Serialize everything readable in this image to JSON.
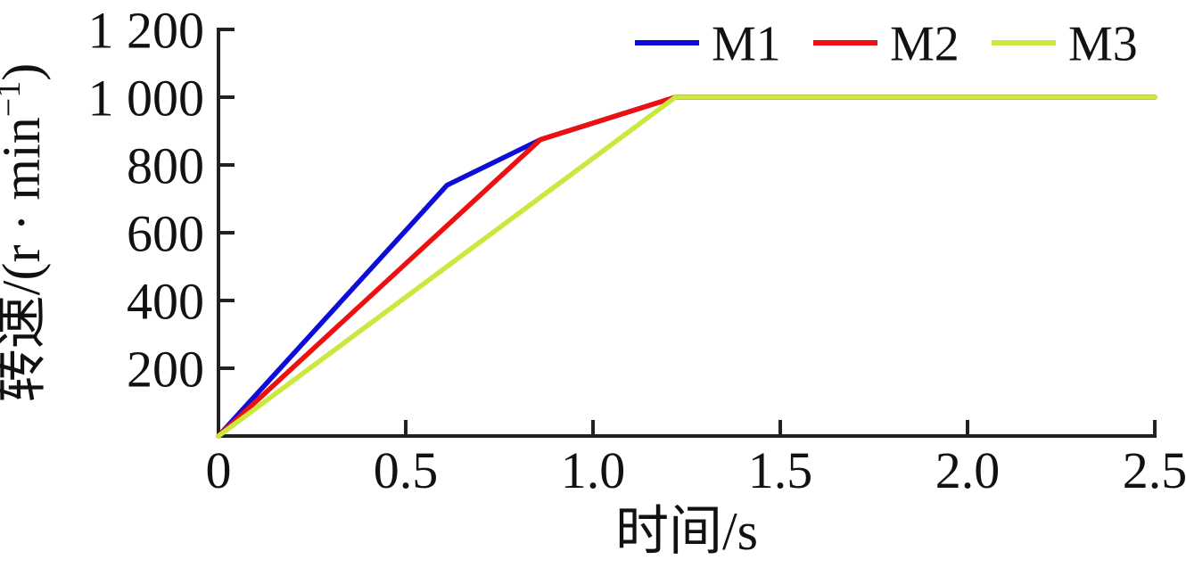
{
  "chart_data": {
    "type": "line",
    "title": "",
    "xlabel": "时间/s",
    "ylabel": "转速/(r · min⁻¹)",
    "ylabel_parts": {
      "main": "转速/(r · min",
      "sup": "−1",
      "close": ")"
    },
    "xlim": [
      0,
      2.5
    ],
    "ylim": [
      0,
      1200
    ],
    "xticks": {
      "values": [
        0,
        0.5,
        1.0,
        1.5,
        2.0,
        2.5
      ],
      "labels": [
        "0",
        "0.5",
        "1.0",
        "1.5",
        "2.0",
        "2.5"
      ]
    },
    "yticks": {
      "values": [
        200,
        400,
        600,
        800,
        1000,
        1200
      ],
      "labels": [
        "200",
        "400",
        "600",
        "800",
        "1 000",
        "1 200"
      ]
    },
    "grid": false,
    "legend_position": "top-right",
    "legend_frame": false,
    "axis_color": "#222222",
    "background_color": "#ffffff",
    "series": [
      {
        "name": "M1",
        "color": "#0d0dd8",
        "points": [
          [
            0,
            0
          ],
          [
            0.61,
            740
          ],
          [
            0.86,
            875
          ],
          [
            1.22,
            1000
          ],
          [
            2.5,
            1000
          ]
        ]
      },
      {
        "name": "M2",
        "color": "#ee1010",
        "points": [
          [
            0,
            0
          ],
          [
            0.86,
            875
          ],
          [
            1.22,
            1000
          ],
          [
            2.5,
            1000
          ]
        ]
      },
      {
        "name": "M3",
        "color": "#cbe83e",
        "points": [
          [
            0,
            0
          ],
          [
            1.22,
            1000
          ],
          [
            2.5,
            1000
          ]
        ]
      }
    ]
  }
}
